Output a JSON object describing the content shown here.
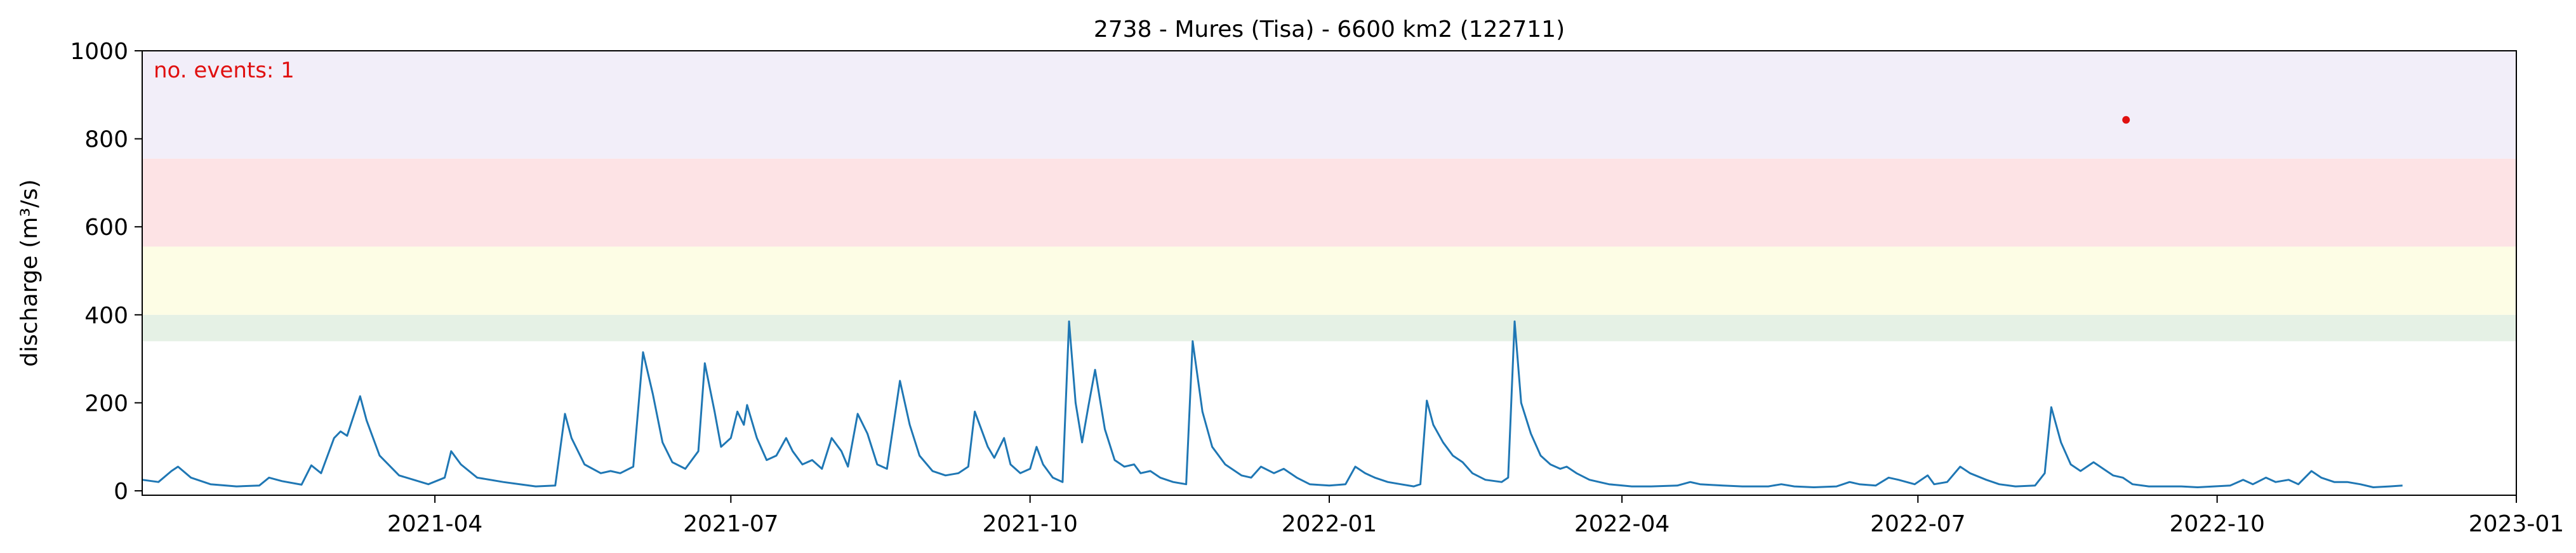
{
  "chart_data": {
    "type": "line",
    "title": "2738 - Mures (Tisa) - 6600 km2 (122711)",
    "xlabel": "",
    "ylabel": "discharge (m³/s)",
    "xlim": [
      "2021-01-01",
      "2023-01-01"
    ],
    "ylim": [
      -10,
      1000
    ],
    "yticks": [
      0,
      200,
      400,
      600,
      800,
      1000
    ],
    "xticks": [
      "2021-04",
      "2021-07",
      "2021-10",
      "2022-01",
      "2022-04",
      "2022-07",
      "2022-10",
      "2023-01"
    ],
    "xtick_dates": [
      "2021-04-01",
      "2021-07-01",
      "2021-10-01",
      "2022-01-01",
      "2022-04-01",
      "2022-07-01",
      "2022-10-01",
      "2023-01-01"
    ],
    "grid": false,
    "threshold_bands": [
      {
        "from": 340,
        "to": 400,
        "color": "#e5f1e5"
      },
      {
        "from": 400,
        "to": 555,
        "color": "#fdfde5"
      },
      {
        "from": 555,
        "to": 755,
        "color": "#fde3e5"
      },
      {
        "from": 755,
        "to": 1000,
        "color": "#f2eef9"
      }
    ],
    "annotation": {
      "text": "no. events: 1",
      "color": "#e01010",
      "position": "top-left"
    },
    "event": {
      "date": "2022-09-03",
      "value": 843,
      "color": "#e01010"
    },
    "series": [
      {
        "color": "#1f77b4",
        "points": [
          [
            "2021-01-01",
            25
          ],
          [
            "2021-01-06",
            20
          ],
          [
            "2021-01-10",
            45
          ],
          [
            "2021-01-12",
            55
          ],
          [
            "2021-01-16",
            30
          ],
          [
            "2021-01-22",
            15
          ],
          [
            "2021-01-30",
            10
          ],
          [
            "2021-02-06",
            12
          ],
          [
            "2021-02-09",
            30
          ],
          [
            "2021-02-13",
            22
          ],
          [
            "2021-02-19",
            14
          ],
          [
            "2021-02-22",
            58
          ],
          [
            "2021-02-25",
            40
          ],
          [
            "2021-03-01",
            120
          ],
          [
            "2021-03-03",
            135
          ],
          [
            "2021-03-05",
            125
          ],
          [
            "2021-03-09",
            215
          ],
          [
            "2021-03-11",
            160
          ],
          [
            "2021-03-15",
            80
          ],
          [
            "2021-03-21",
            35
          ],
          [
            "2021-03-30",
            15
          ],
          [
            "2021-04-04",
            30
          ],
          [
            "2021-04-06",
            90
          ],
          [
            "2021-04-09",
            60
          ],
          [
            "2021-04-14",
            30
          ],
          [
            "2021-04-22",
            20
          ],
          [
            "2021-05-02",
            10
          ],
          [
            "2021-05-08",
            12
          ],
          [
            "2021-05-11",
            175
          ],
          [
            "2021-05-13",
            120
          ],
          [
            "2021-05-17",
            60
          ],
          [
            "2021-05-22",
            40
          ],
          [
            "2021-05-25",
            45
          ],
          [
            "2021-05-28",
            40
          ],
          [
            "2021-06-01",
            55
          ],
          [
            "2021-06-04",
            315
          ],
          [
            "2021-06-07",
            220
          ],
          [
            "2021-06-10",
            110
          ],
          [
            "2021-06-13",
            65
          ],
          [
            "2021-06-17",
            50
          ],
          [
            "2021-06-21",
            90
          ],
          [
            "2021-06-23",
            290
          ],
          [
            "2021-06-26",
            180
          ],
          [
            "2021-06-28",
            100
          ],
          [
            "2021-07-01",
            120
          ],
          [
            "2021-07-03",
            180
          ],
          [
            "2021-07-05",
            150
          ],
          [
            "2021-07-06",
            195
          ],
          [
            "2021-07-09",
            120
          ],
          [
            "2021-07-12",
            70
          ],
          [
            "2021-07-15",
            80
          ],
          [
            "2021-07-18",
            120
          ],
          [
            "2021-07-20",
            90
          ],
          [
            "2021-07-23",
            60
          ],
          [
            "2021-07-26",
            70
          ],
          [
            "2021-07-29",
            50
          ],
          [
            "2021-08-01",
            120
          ],
          [
            "2021-08-04",
            90
          ],
          [
            "2021-08-06",
            55
          ],
          [
            "2021-08-09",
            175
          ],
          [
            "2021-08-12",
            130
          ],
          [
            "2021-08-15",
            60
          ],
          [
            "2021-08-18",
            50
          ],
          [
            "2021-08-22",
            250
          ],
          [
            "2021-08-25",
            150
          ],
          [
            "2021-08-28",
            80
          ],
          [
            "2021-09-01",
            45
          ],
          [
            "2021-09-05",
            35
          ],
          [
            "2021-09-09",
            40
          ],
          [
            "2021-09-12",
            55
          ],
          [
            "2021-09-14",
            180
          ],
          [
            "2021-09-18",
            100
          ],
          [
            "2021-09-20",
            75
          ],
          [
            "2021-09-23",
            120
          ],
          [
            "2021-09-25",
            60
          ],
          [
            "2021-09-28",
            40
          ],
          [
            "2021-10-01",
            50
          ],
          [
            "2021-10-03",
            100
          ],
          [
            "2021-10-05",
            60
          ],
          [
            "2021-10-08",
            30
          ],
          [
            "2021-10-11",
            20
          ],
          [
            "2021-10-13",
            385
          ],
          [
            "2021-10-15",
            200
          ],
          [
            "2021-10-17",
            110
          ],
          [
            "2021-10-19",
            195
          ],
          [
            "2021-10-21",
            275
          ],
          [
            "2021-10-24",
            140
          ],
          [
            "2021-10-27",
            70
          ],
          [
            "2021-10-30",
            55
          ],
          [
            "2021-11-02",
            60
          ],
          [
            "2021-11-04",
            40
          ],
          [
            "2021-11-07",
            45
          ],
          [
            "2021-11-10",
            30
          ],
          [
            "2021-11-14",
            20
          ],
          [
            "2021-11-18",
            15
          ],
          [
            "2021-11-20",
            340
          ],
          [
            "2021-11-23",
            180
          ],
          [
            "2021-11-26",
            100
          ],
          [
            "2021-11-30",
            60
          ],
          [
            "2021-12-05",
            35
          ],
          [
            "2021-12-08",
            30
          ],
          [
            "2021-12-11",
            55
          ],
          [
            "2021-12-15",
            40
          ],
          [
            "2021-12-18",
            50
          ],
          [
            "2021-12-22",
            30
          ],
          [
            "2021-12-26",
            15
          ],
          [
            "2022-01-01",
            12
          ],
          [
            "2022-01-06",
            15
          ],
          [
            "2022-01-09",
            55
          ],
          [
            "2022-01-12",
            40
          ],
          [
            "2022-01-15",
            30
          ],
          [
            "2022-01-19",
            20
          ],
          [
            "2022-01-23",
            15
          ],
          [
            "2022-01-27",
            10
          ],
          [
            "2022-01-29",
            15
          ],
          [
            "2022-01-31",
            205
          ],
          [
            "2022-02-02",
            150
          ],
          [
            "2022-02-05",
            110
          ],
          [
            "2022-02-08",
            80
          ],
          [
            "2022-02-11",
            65
          ],
          [
            "2022-02-14",
            40
          ],
          [
            "2022-02-18",
            25
          ],
          [
            "2022-02-23",
            20
          ],
          [
            "2022-02-25",
            30
          ],
          [
            "2022-02-27",
            385
          ],
          [
            "2022-03-01",
            200
          ],
          [
            "2022-03-04",
            130
          ],
          [
            "2022-03-07",
            80
          ],
          [
            "2022-03-10",
            60
          ],
          [
            "2022-03-13",
            50
          ],
          [
            "2022-03-15",
            55
          ],
          [
            "2022-03-18",
            40
          ],
          [
            "2022-03-22",
            25
          ],
          [
            "2022-03-28",
            15
          ],
          [
            "2022-04-04",
            10
          ],
          [
            "2022-04-10",
            10
          ],
          [
            "2022-04-18",
            12
          ],
          [
            "2022-04-22",
            20
          ],
          [
            "2022-04-25",
            15
          ],
          [
            "2022-05-02",
            12
          ],
          [
            "2022-05-08",
            10
          ],
          [
            "2022-05-16",
            10
          ],
          [
            "2022-05-20",
            15
          ],
          [
            "2022-05-24",
            10
          ],
          [
            "2022-05-30",
            8
          ],
          [
            "2022-06-06",
            10
          ],
          [
            "2022-06-10",
            20
          ],
          [
            "2022-06-13",
            15
          ],
          [
            "2022-06-18",
            12
          ],
          [
            "2022-06-22",
            30
          ],
          [
            "2022-06-25",
            25
          ],
          [
            "2022-06-30",
            15
          ],
          [
            "2022-07-04",
            35
          ],
          [
            "2022-07-06",
            15
          ],
          [
            "2022-07-10",
            20
          ],
          [
            "2022-07-14",
            55
          ],
          [
            "2022-07-17",
            40
          ],
          [
            "2022-07-22",
            25
          ],
          [
            "2022-07-26",
            15
          ],
          [
            "2022-07-31",
            10
          ],
          [
            "2022-08-06",
            12
          ],
          [
            "2022-08-09",
            40
          ],
          [
            "2022-08-11",
            190
          ],
          [
            "2022-08-14",
            110
          ],
          [
            "2022-08-17",
            60
          ],
          [
            "2022-08-20",
            45
          ],
          [
            "2022-08-24",
            65
          ],
          [
            "2022-08-27",
            50
          ],
          [
            "2022-08-30",
            35
          ],
          [
            "2022-09-02",
            30
          ],
          [
            "2022-09-05",
            15
          ],
          [
            "2022-09-10",
            10
          ],
          [
            "2022-09-15",
            10
          ],
          [
            "2022-09-20",
            10
          ],
          [
            "2022-09-25",
            8
          ],
          [
            "2022-09-30",
            10
          ],
          [
            "2022-10-05",
            12
          ],
          [
            "2022-10-09",
            25
          ],
          [
            "2022-10-12",
            15
          ],
          [
            "2022-10-16",
            30
          ],
          [
            "2022-10-19",
            20
          ],
          [
            "2022-10-23",
            25
          ],
          [
            "2022-10-26",
            15
          ],
          [
            "2022-10-30",
            45
          ],
          [
            "2022-11-02",
            30
          ],
          [
            "2022-11-06",
            20
          ],
          [
            "2022-11-10",
            20
          ],
          [
            "2022-11-14",
            15
          ],
          [
            "2022-11-18",
            8
          ],
          [
            "2022-11-23",
            10
          ],
          [
            "2022-11-27",
            12
          ]
        ]
      }
    ]
  }
}
